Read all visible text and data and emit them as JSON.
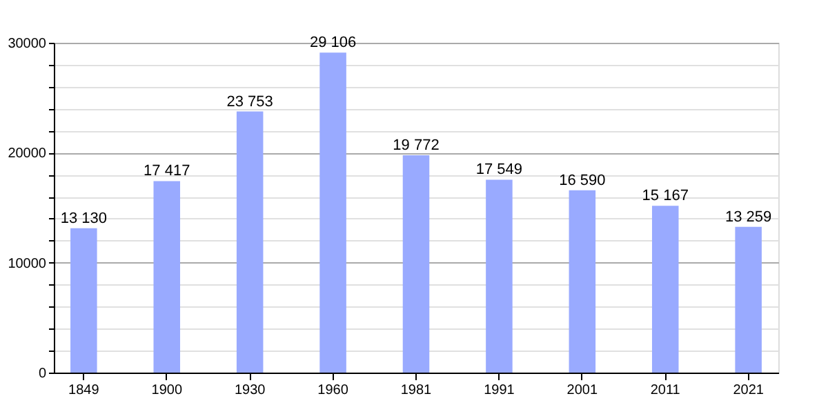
{
  "chart_data": {
    "type": "bar",
    "categories": [
      "1849",
      "1900",
      "1930",
      "1960",
      "1981",
      "1991",
      "2001",
      "2011",
      "2021"
    ],
    "values": [
      13130,
      17417,
      23753,
      29106,
      19772,
      17549,
      16590,
      15167,
      13259
    ],
    "value_labels": [
      "13 130",
      "17 417",
      "23 753",
      "29 106",
      "19 772",
      "17 549",
      "16 590",
      "15 167",
      "13 259"
    ],
    "color": "#99aaff",
    "ylim": [
      0,
      30000
    ],
    "yticks": [
      0,
      {
        "value": 2000,
        "label": null
      },
      {
        "value": 4000,
        "label": null
      },
      {
        "value": 6000,
        "label": null
      },
      {
        "value": 8000,
        "label": null
      },
      10000,
      {
        "value": 12000,
        "label": null
      },
      {
        "value": 14000,
        "label": null
      },
      {
        "value": 16000,
        "label": null
      },
      {
        "value": 18000,
        "label": null
      },
      20000,
      {
        "value": 22000,
        "label": null
      },
      {
        "value": 24000,
        "label": null
      },
      {
        "value": 26000,
        "label": null
      },
      {
        "value": 28000,
        "label": null
      },
      30000
    ],
    "grid": true
  }
}
